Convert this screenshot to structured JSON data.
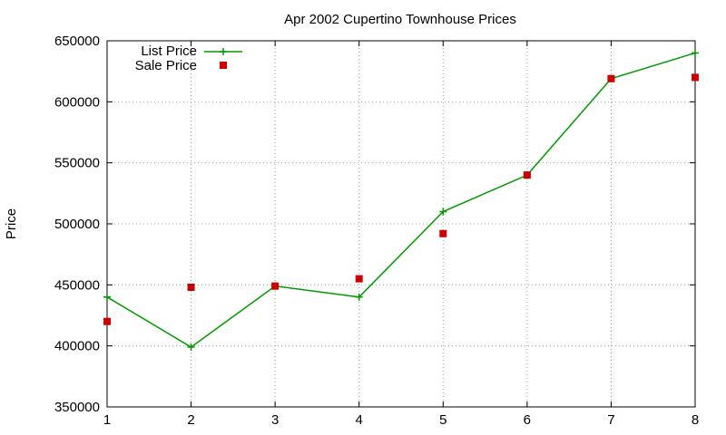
{
  "chart_data": {
    "type": "line",
    "title": "Apr 2002 Cupertino Townhouse Prices",
    "xlabel": "",
    "ylabel": "Price",
    "x": [
      1,
      2,
      3,
      4,
      5,
      6,
      7,
      8
    ],
    "xlim": [
      1,
      8
    ],
    "ylim": [
      350000,
      650000
    ],
    "xticks": [
      "1",
      "2",
      "3",
      "4",
      "5",
      "6",
      "7",
      "8"
    ],
    "yticks": [
      "350000",
      "400000",
      "450000",
      "500000",
      "550000",
      "600000",
      "650000"
    ],
    "grid": true,
    "legend_position": "top-left",
    "series": [
      {
        "name": "List Price",
        "style": "line-with-plus-markers",
        "color": "#009900",
        "values": [
          440000,
          399000,
          449000,
          440000,
          510000,
          540000,
          619000,
          640000
        ]
      },
      {
        "name": "Sale Price",
        "style": "square-markers",
        "color": "#cc0000",
        "values": [
          420000,
          448000,
          449000,
          455000,
          492000,
          540000,
          619000,
          620000
        ]
      }
    ]
  }
}
